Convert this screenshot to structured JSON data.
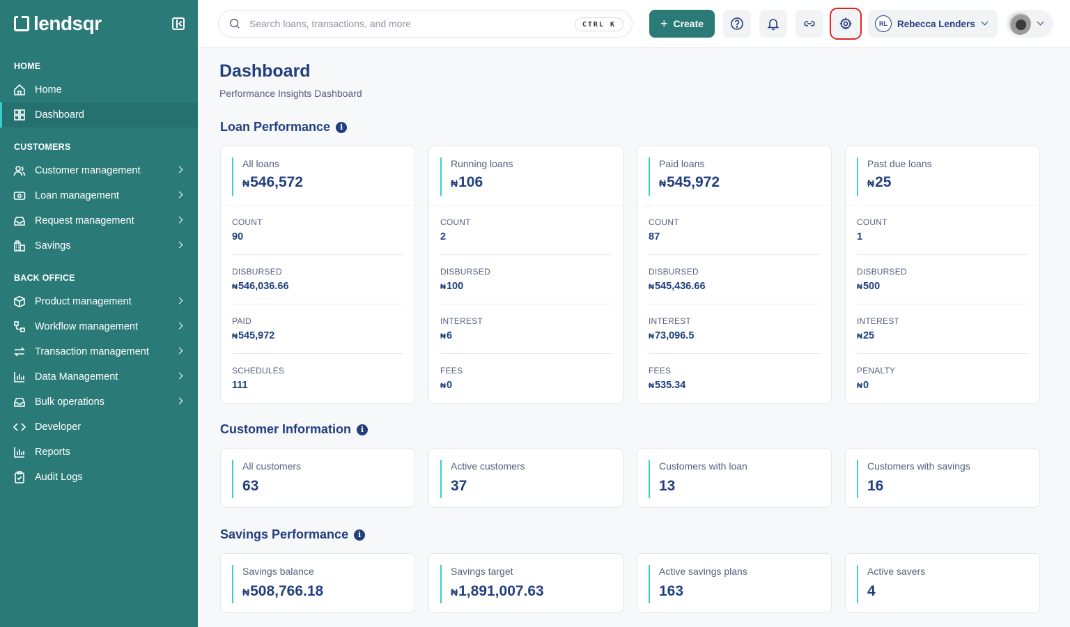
{
  "brand": {
    "name": "lendsqr"
  },
  "sidebar": {
    "sections": [
      {
        "title": "HOME",
        "items": [
          {
            "label": "Home",
            "icon": "home-icon",
            "chevron": false,
            "active": false
          },
          {
            "label": "Dashboard",
            "icon": "dashboard-icon",
            "chevron": false,
            "active": true
          }
        ]
      },
      {
        "title": "CUSTOMERS",
        "items": [
          {
            "label": "Customer management",
            "icon": "users-icon",
            "chevron": true
          },
          {
            "label": "Loan management",
            "icon": "money-icon",
            "chevron": true
          },
          {
            "label": "Request management",
            "icon": "inbox-icon",
            "chevron": true
          },
          {
            "label": "Savings",
            "icon": "bank-icon",
            "chevron": true
          }
        ]
      },
      {
        "title": "BACK OFFICE",
        "items": [
          {
            "label": "Product management",
            "icon": "box-icon",
            "chevron": true
          },
          {
            "label": "Workflow management",
            "icon": "workflow-icon",
            "chevron": true
          },
          {
            "label": "Transaction management",
            "icon": "transfer-icon",
            "chevron": true
          },
          {
            "label": "Data Management",
            "icon": "chart-icon",
            "chevron": true
          },
          {
            "label": "Bulk operations",
            "icon": "inbox-icon",
            "chevron": true
          },
          {
            "label": "Developer",
            "icon": "code-icon",
            "chevron": false
          },
          {
            "label": "Reports",
            "icon": "chart-icon",
            "chevron": false
          },
          {
            "label": "Audit Logs",
            "icon": "clipboard-icon",
            "chevron": false
          }
        ]
      }
    ]
  },
  "topbar": {
    "search_placeholder": "Search loans, transactions, and more",
    "shortcut": "CTRL K",
    "create_label": "Create",
    "user_initials": "RL",
    "user_name": "Rebecca Lenders"
  },
  "page": {
    "title": "Dashboard",
    "subtitle": "Performance Insights Dashboard"
  },
  "currency": "₦",
  "loan_performance": {
    "title": "Loan Performance",
    "cards": [
      {
        "label": "All loans",
        "value": "546,572",
        "stats": [
          {
            "label": "COUNT",
            "value": "90",
            "currency": false
          },
          {
            "label": "DISBURSED",
            "value": "546,036.66",
            "currency": true
          },
          {
            "label": "PAID",
            "value": "545,972",
            "currency": true
          },
          {
            "label": "SCHEDULES",
            "value": "111",
            "currency": false
          }
        ]
      },
      {
        "label": "Running loans",
        "value": "106",
        "stats": [
          {
            "label": "COUNT",
            "value": "2",
            "currency": false
          },
          {
            "label": "DISBURSED",
            "value": "100",
            "currency": true
          },
          {
            "label": "INTEREST",
            "value": "6",
            "currency": true
          },
          {
            "label": "FEES",
            "value": "0",
            "currency": true
          }
        ]
      },
      {
        "label": "Paid loans",
        "value": "545,972",
        "stats": [
          {
            "label": "COUNT",
            "value": "87",
            "currency": false
          },
          {
            "label": "DISBURSED",
            "value": "545,436.66",
            "currency": true
          },
          {
            "label": "INTEREST",
            "value": "73,096.5",
            "currency": true
          },
          {
            "label": "FEES",
            "value": "535.34",
            "currency": true
          }
        ]
      },
      {
        "label": "Past due loans",
        "value": "25",
        "stats": [
          {
            "label": "COUNT",
            "value": "1",
            "currency": false
          },
          {
            "label": "DISBURSED",
            "value": "500",
            "currency": true
          },
          {
            "label": "INTEREST",
            "value": "25",
            "currency": true
          },
          {
            "label": "PENALTY",
            "value": "0",
            "currency": true
          }
        ]
      }
    ]
  },
  "customer_information": {
    "title": "Customer Information",
    "cards": [
      {
        "label": "All customers",
        "value": "63",
        "currency": false
      },
      {
        "label": "Active customers",
        "value": "37",
        "currency": false
      },
      {
        "label": "Customers with loan",
        "value": "13",
        "currency": false
      },
      {
        "label": "Customers with savings",
        "value": "16",
        "currency": false
      }
    ]
  },
  "savings_performance": {
    "title": "Savings Performance",
    "cards": [
      {
        "label": "Savings balance",
        "value": "508,766.18",
        "currency": true
      },
      {
        "label": "Savings target",
        "value": "1,891,007.63",
        "currency": true
      },
      {
        "label": "Active savings plans",
        "value": "163",
        "currency": false
      },
      {
        "label": "Active savers",
        "value": "4",
        "currency": false
      }
    ]
  },
  "colors": {
    "sidebar": "#2a7a78",
    "accent": "#39cdcc",
    "primary_text": "#213f7d",
    "highlight": "#e02020"
  }
}
